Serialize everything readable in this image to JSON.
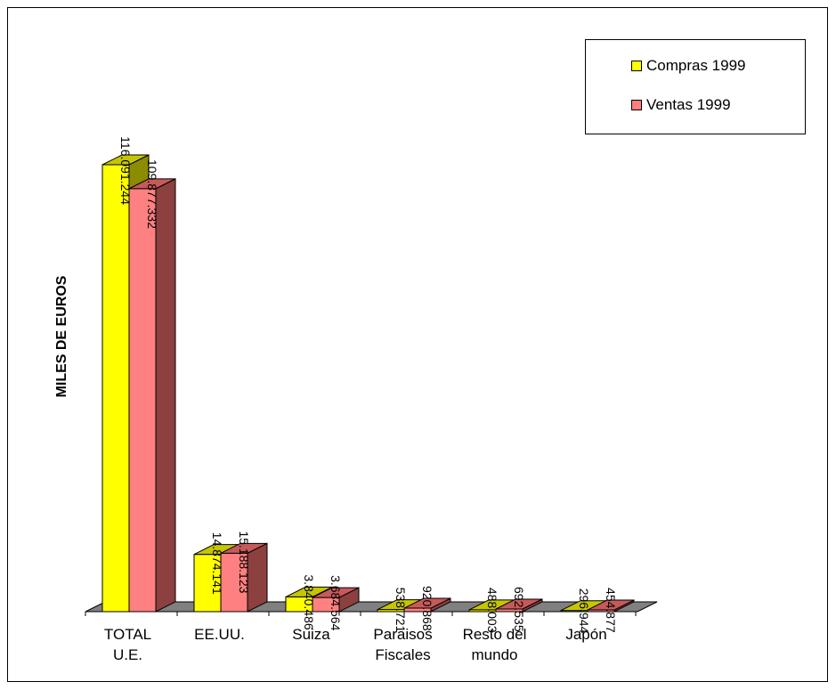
{
  "chart_data": {
    "type": "bar",
    "three_d": true,
    "categories": [
      "TOTAL\nU.E.",
      "EE.UU.",
      "Suiza",
      "Paraisos\nFiscales",
      "Resto del\nmundo",
      "Japón"
    ],
    "series": [
      {
        "name": "Compras 1999",
        "values": [
          116091244,
          14874141,
          3840486,
          538721,
          488003,
          296944
        ],
        "labels": [
          "116.091.244",
          "14.874.141",
          "3.840.486",
          "538.721",
          "488.003",
          "296.944"
        ],
        "color": "#ffff00"
      },
      {
        "name": "Ventas 1999",
        "values": [
          109877332,
          15188123,
          3684564,
          920868,
          692535,
          454877
        ],
        "labels": [
          "109.877.332",
          "15.188.123",
          "3.684.564",
          "920.868",
          "692.535",
          "454.877"
        ],
        "color": "#ff8080"
      }
    ],
    "ylabel": "MILES DE EUROS",
    "xlabel": "",
    "ylim": [
      0,
      116091244
    ],
    "grid": false,
    "legend_position": "top-right"
  },
  "colors": {
    "compras_front": "#ffff00",
    "compras_top": "#c6c600",
    "compras_side": "#8c8c00",
    "ventas_front": "#ff8080",
    "ventas_top": "#c65a5a",
    "ventas_side": "#8c4040",
    "floor": "#808080"
  }
}
